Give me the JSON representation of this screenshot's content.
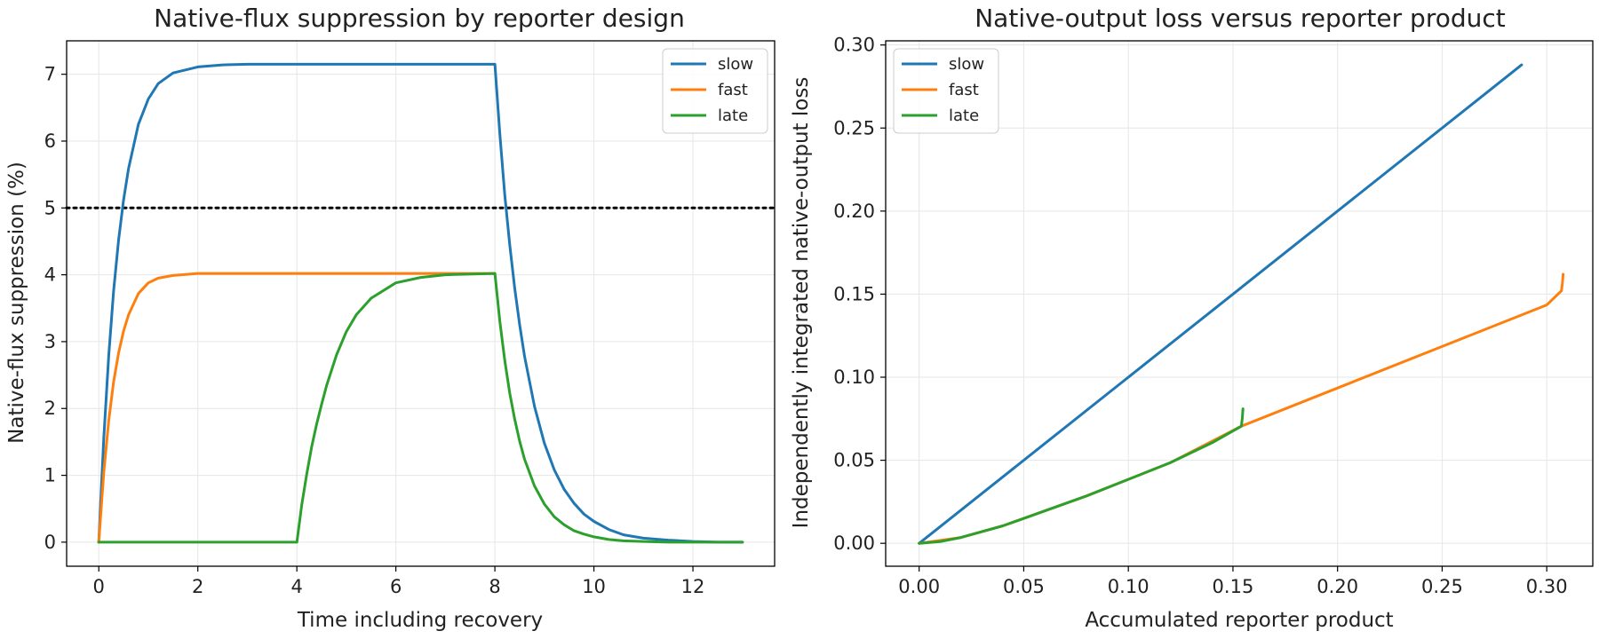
{
  "colors": {
    "slow": "#1f77b4",
    "fast": "#ff7f0e",
    "late": "#2ca02c",
    "grid": "#e6e6e6",
    "axis": "#000000",
    "threshold": "#000000"
  },
  "chart_data": [
    {
      "type": "line",
      "title": "Native-flux suppression by reporter design",
      "xlabel": "Time including recovery",
      "ylabel": "Native-flux suppression (%)",
      "xlim": [
        -0.65,
        13.65
      ],
      "ylim": [
        -0.36,
        7.5
      ],
      "xticks": [
        0,
        2,
        4,
        6,
        8,
        10,
        12
      ],
      "xtick_labels": [
        "0",
        "2",
        "4",
        "6",
        "8",
        "10",
        "12"
      ],
      "yticks": [
        0,
        1,
        2,
        3,
        4,
        5,
        6,
        7
      ],
      "ytick_labels": [
        "0",
        "1",
        "2",
        "3",
        "4",
        "5",
        "6",
        "7"
      ],
      "grid": true,
      "legend": "upper right",
      "hline": {
        "y": 5,
        "style": "dotted"
      },
      "series": [
        {
          "name": "slow",
          "color": "#1f77b4",
          "x": [
            0,
            0.1,
            0.2,
            0.3,
            0.4,
            0.5,
            0.6,
            0.8,
            1.0,
            1.2,
            1.5,
            2.0,
            2.5,
            3.0,
            4.0,
            5.0,
            6.0,
            7.0,
            8.0,
            8.1,
            8.2,
            8.3,
            8.4,
            8.5,
            8.6,
            8.8,
            9.0,
            9.2,
            9.4,
            9.6,
            9.8,
            10.0,
            10.3,
            10.6,
            11.0,
            11.5,
            12.0,
            12.5,
            13.0
          ],
          "y": [
            0,
            1.55,
            2.79,
            3.76,
            4.52,
            5.12,
            5.59,
            6.25,
            6.63,
            6.86,
            7.02,
            7.11,
            7.14,
            7.15,
            7.15,
            7.15,
            7.15,
            7.15,
            7.15,
            6.1,
            5.2,
            4.45,
            3.8,
            3.25,
            2.78,
            2.03,
            1.48,
            1.08,
            0.79,
            0.58,
            0.42,
            0.31,
            0.19,
            0.11,
            0.06,
            0.03,
            0.01,
            0.0,
            0.0
          ]
        },
        {
          "name": "fast",
          "color": "#ff7f0e",
          "x": [
            0,
            0.1,
            0.2,
            0.3,
            0.4,
            0.5,
            0.6,
            0.8,
            1.0,
            1.2,
            1.5,
            2.0,
            2.5,
            3.0,
            4.0,
            5.0,
            6.0,
            7.0,
            8.0
          ],
          "y": [
            0,
            1.04,
            1.82,
            2.4,
            2.83,
            3.16,
            3.4,
            3.72,
            3.88,
            3.95,
            3.99,
            4.02,
            4.02,
            4.02,
            4.02,
            4.02,
            4.02,
            4.02,
            4.02
          ]
        },
        {
          "name": "late",
          "color": "#2ca02c",
          "x": [
            0,
            1.0,
            2.0,
            3.0,
            4.0,
            4.1,
            4.2,
            4.3,
            4.4,
            4.5,
            4.6,
            4.8,
            5.0,
            5.2,
            5.5,
            6.0,
            6.5,
            7.0,
            8.0,
            8.1,
            8.2,
            8.3,
            8.4,
            8.5,
            8.6,
            8.8,
            9.0,
            9.2,
            9.4,
            9.6,
            9.8,
            10.0,
            10.3,
            10.6,
            11.0,
            11.5,
            12.0,
            13.0
          ],
          "y": [
            0,
            0,
            0,
            0,
            0,
            0.56,
            1.02,
            1.43,
            1.77,
            2.06,
            2.34,
            2.8,
            3.15,
            3.4,
            3.65,
            3.88,
            3.96,
            4.0,
            4.02,
            3.3,
            2.72,
            2.23,
            1.84,
            1.51,
            1.24,
            0.84,
            0.57,
            0.38,
            0.26,
            0.17,
            0.12,
            0.08,
            0.04,
            0.02,
            0.01,
            0.0,
            0.0,
            0.0
          ]
        }
      ]
    },
    {
      "type": "line",
      "title": "Native-output loss versus reporter product",
      "xlabel": "Accumulated reporter product",
      "ylabel": "Independently integrated native-output loss",
      "xlim": [
        -0.016,
        0.322
      ],
      "ylim": [
        -0.0138,
        0.3025
      ],
      "xticks": [
        0,
        0.05,
        0.1,
        0.15,
        0.2,
        0.25,
        0.3
      ],
      "xtick_labels": [
        "0.00",
        "0.05",
        "0.10",
        "0.15",
        "0.20",
        "0.25",
        "0.30"
      ],
      "yticks": [
        0,
        0.05,
        0.1,
        0.15,
        0.2,
        0.25,
        0.3
      ],
      "ytick_labels": [
        "0.00",
        "0.05",
        "0.10",
        "0.15",
        "0.20",
        "0.25",
        "0.30"
      ],
      "grid": true,
      "legend": "upper left",
      "series": [
        {
          "name": "slow",
          "color": "#1f77b4",
          "x": [
            0,
            0.288
          ],
          "y": [
            0,
            0.288
          ]
        },
        {
          "name": "fast",
          "color": "#ff7f0e",
          "x": [
            0,
            0.02,
            0.04,
            0.06,
            0.08,
            0.1,
            0.12,
            0.154,
            0.2,
            0.25,
            0.3,
            0.307,
            0.3075,
            0.3078
          ],
          "y": [
            0,
            0.0035,
            0.0105,
            0.0195,
            0.0285,
            0.0385,
            0.0485,
            0.0705,
            0.0935,
            0.1185,
            0.1435,
            0.152,
            0.157,
            0.162
          ]
        },
        {
          "name": "late",
          "color": "#2ca02c",
          "x": [
            0,
            0.01,
            0.02,
            0.04,
            0.06,
            0.08,
            0.1,
            0.12,
            0.14,
            0.154,
            0.1545,
            0.1548
          ],
          "y": [
            0,
            0.001,
            0.0035,
            0.0105,
            0.0195,
            0.0285,
            0.0385,
            0.0485,
            0.0605,
            0.0705,
            0.0755,
            0.081
          ]
        }
      ]
    }
  ]
}
